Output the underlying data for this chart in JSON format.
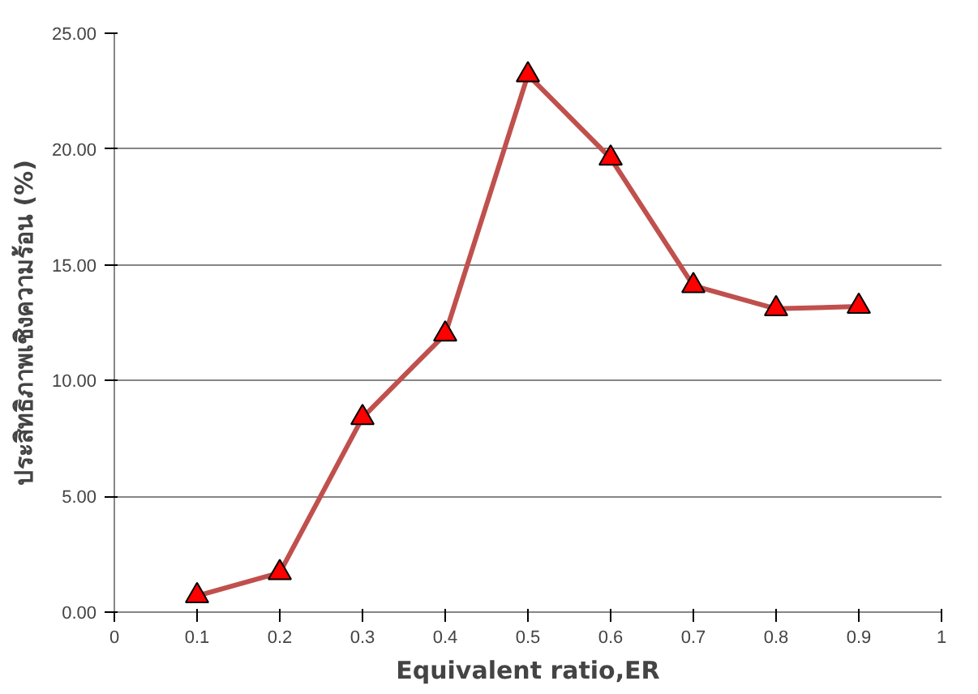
{
  "chart_data": {
    "type": "line",
    "xlabel": "Equivalent ratio,ER",
    "ylabel": "ประสิทธิภาพเชิงความร้อน (%)",
    "x": [
      0.1,
      0.2,
      0.3,
      0.4,
      0.5,
      0.6,
      0.7,
      0.8,
      0.9
    ],
    "series": [
      {
        "color": "#c0504d",
        "values": [
          0.7,
          1.7,
          8.4,
          12.0,
          23.2,
          19.6,
          14.1,
          13.1,
          13.2
        ]
      }
    ],
    "xlim": [
      0,
      1
    ],
    "xticks": [
      0,
      0.1,
      0.2,
      0.3,
      0.4,
      0.5,
      0.6,
      0.7,
      0.8,
      0.9,
      1
    ],
    "ylim": [
      0,
      25
    ],
    "yticks": [
      {
        "value": 0,
        "label": "0.00"
      },
      {
        "value": 5,
        "label": "5.00"
      },
      {
        "value": 10,
        "label": "10.00"
      },
      {
        "value": 15,
        "label": "15.00"
      },
      {
        "value": 20,
        "label": "20.00"
      },
      {
        "value": 25,
        "label": "25.00"
      }
    ],
    "grid": "y",
    "marker": "triangle",
    "line_style": "solid"
  }
}
